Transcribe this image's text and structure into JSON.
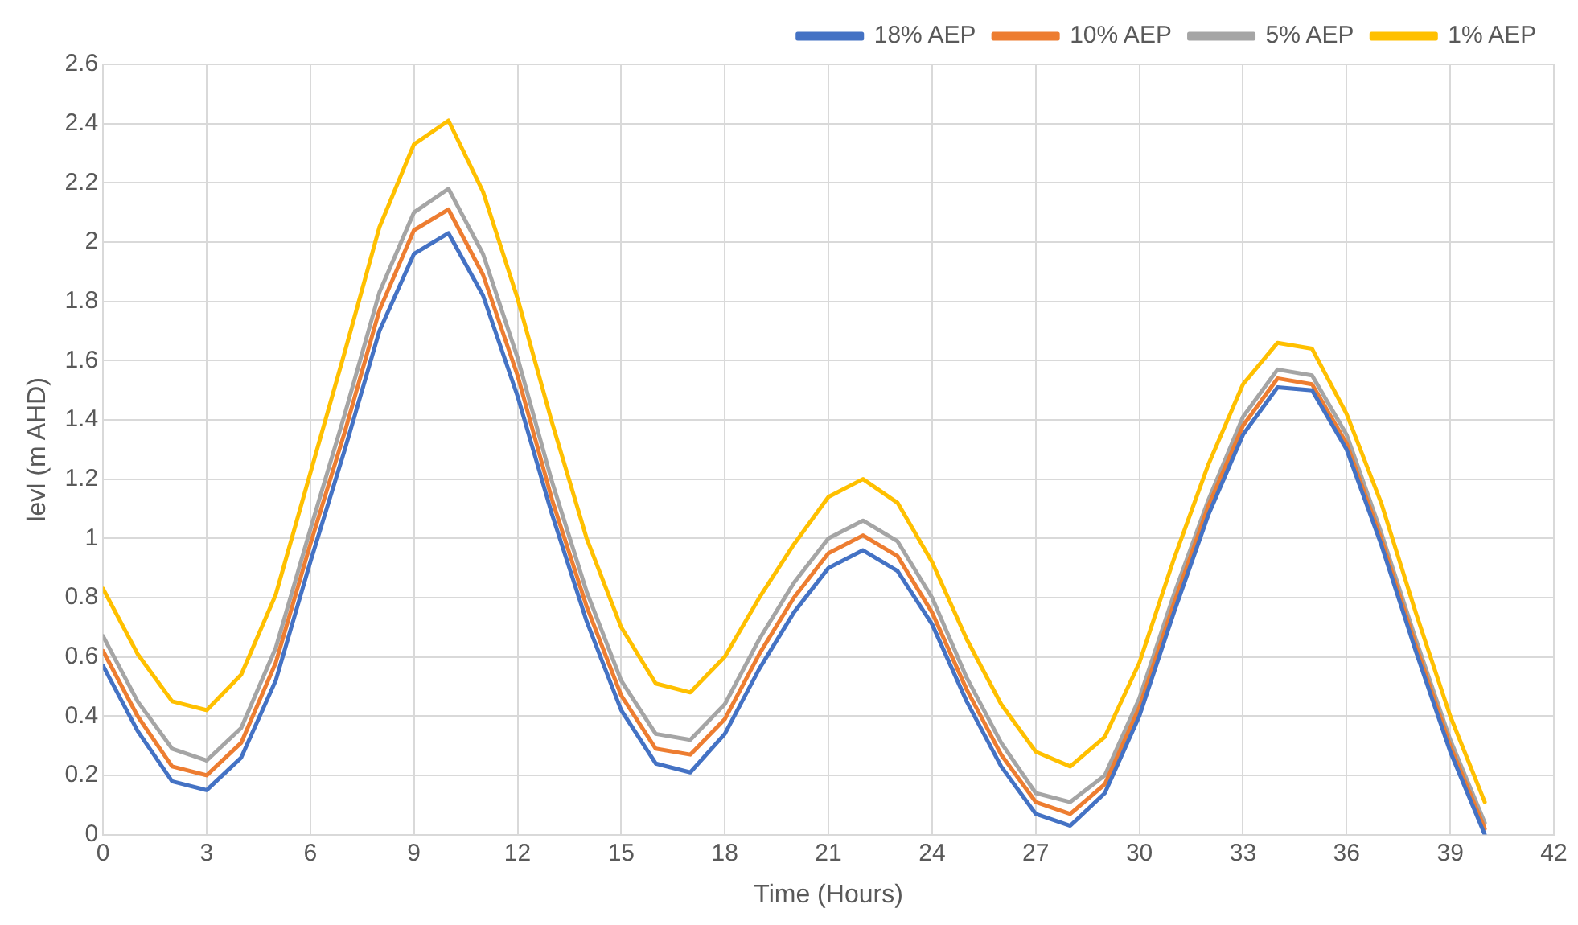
{
  "chart_data": {
    "type": "line",
    "xlabel": "Time (Hours)",
    "ylabel": "levl (m AHD)",
    "x": [
      0,
      1,
      2,
      3,
      4,
      5,
      6,
      7,
      8,
      9,
      10,
      11,
      12,
      13,
      14,
      15,
      16,
      17,
      18,
      19,
      20,
      21,
      22,
      23,
      24,
      25,
      26,
      27,
      28,
      29,
      30,
      31,
      32,
      33,
      34,
      35,
      36,
      37,
      38,
      39,
      40
    ],
    "series": [
      {
        "name": "18% AEP",
        "color": "#4472c4",
        "values": [
          0.57,
          0.35,
          0.18,
          0.15,
          0.26,
          0.52,
          0.92,
          1.3,
          1.7,
          1.96,
          2.03,
          1.82,
          1.48,
          1.08,
          0.72,
          0.42,
          0.24,
          0.21,
          0.34,
          0.56,
          0.75,
          0.9,
          0.96,
          0.89,
          0.71,
          0.45,
          0.23,
          0.07,
          0.03,
          0.14,
          0.4,
          0.75,
          1.08,
          1.35,
          1.51,
          1.5,
          1.3,
          0.98,
          0.62,
          0.28,
          0.0
        ]
      },
      {
        "name": "10% AEP",
        "color": "#ed7d31",
        "values": [
          0.62,
          0.4,
          0.23,
          0.2,
          0.31,
          0.58,
          0.98,
          1.36,
          1.77,
          2.04,
          2.11,
          1.89,
          1.55,
          1.13,
          0.77,
          0.47,
          0.29,
          0.27,
          0.39,
          0.61,
          0.8,
          0.95,
          1.01,
          0.94,
          0.75,
          0.49,
          0.27,
          0.11,
          0.07,
          0.17,
          0.43,
          0.78,
          1.11,
          1.38,
          1.54,
          1.52,
          1.32,
          1.0,
          0.64,
          0.3,
          0.02
        ]
      },
      {
        "name": "5% AEP",
        "color": "#a5a5a5",
        "values": [
          0.67,
          0.45,
          0.29,
          0.25,
          0.36,
          0.63,
          1.03,
          1.42,
          1.83,
          2.1,
          2.18,
          1.96,
          1.61,
          1.19,
          0.82,
          0.52,
          0.34,
          0.32,
          0.44,
          0.66,
          0.85,
          1.0,
          1.06,
          0.99,
          0.8,
          0.53,
          0.31,
          0.14,
          0.11,
          0.2,
          0.46,
          0.81,
          1.13,
          1.41,
          1.57,
          1.55,
          1.35,
          1.02,
          0.66,
          0.32,
          0.04
        ]
      },
      {
        "name": "1% AEP",
        "color": "#ffc000",
        "values": [
          0.83,
          0.61,
          0.45,
          0.42,
          0.54,
          0.81,
          1.22,
          1.63,
          2.05,
          2.33,
          2.41,
          2.17,
          1.81,
          1.39,
          1.0,
          0.7,
          0.51,
          0.48,
          0.6,
          0.8,
          0.98,
          1.14,
          1.2,
          1.12,
          0.92,
          0.66,
          0.44,
          0.28,
          0.23,
          0.33,
          0.58,
          0.93,
          1.25,
          1.52,
          1.66,
          1.64,
          1.42,
          1.12,
          0.75,
          0.4,
          0.11
        ]
      }
    ],
    "xlim": [
      0,
      42
    ],
    "xticks": [
      0,
      3,
      6,
      9,
      12,
      15,
      18,
      21,
      24,
      27,
      30,
      33,
      36,
      39,
      42
    ],
    "ylim": [
      0,
      2.6
    ],
    "yticks": [
      0,
      0.2,
      0.4,
      0.6,
      0.8,
      1,
      1.2,
      1.4,
      1.6,
      1.8,
      2,
      2.2,
      2.4,
      2.6
    ],
    "grid": true,
    "legend": "top right",
    "marker": "none",
    "line_style": "solid"
  }
}
